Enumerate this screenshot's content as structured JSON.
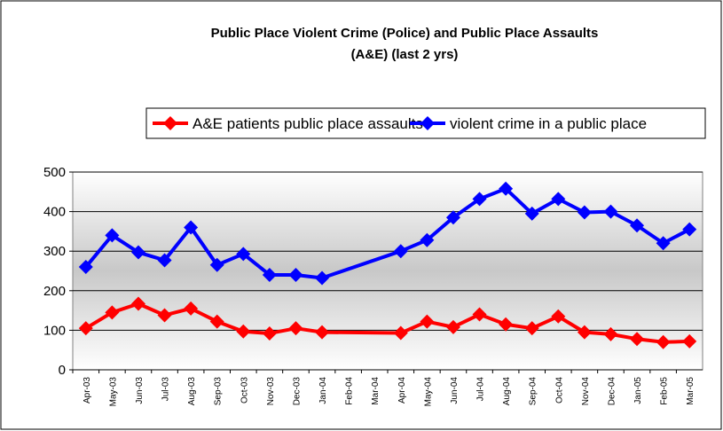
{
  "chart_data": {
    "type": "line",
    "title": [
      "Public Place Violent Crime (Police) and Public Place Assaults",
      "(A&E) (last 2 yrs)"
    ],
    "categories": [
      "Apr-03",
      "May-03",
      "Jun-03",
      "Jul-03",
      "Aug-03",
      "Sep-03",
      "Oct-03",
      "Nov-03",
      "Dec-03",
      "Jan-04",
      "Feb-04",
      "Mar-04",
      "Apr-04",
      "May-04",
      "Jun-04",
      "Jul-04",
      "Aug-04",
      "Sep-04",
      "Oct-04",
      "Nov-04",
      "Dec-04",
      "Jan-05",
      "Feb-05",
      "Mar-05"
    ],
    "series": [
      {
        "name": "A&E patients public place assaults",
        "color": "#ff0000",
        "values": [
          105,
          145,
          167,
          138,
          155,
          122,
          97,
          92,
          105,
          95,
          null,
          null,
          93,
          122,
          108,
          140,
          115,
          105,
          135,
          95,
          90,
          78,
          70,
          72
        ]
      },
      {
        "name": "violent crime in a public place",
        "color": "#0000ff",
        "values": [
          260,
          340,
          297,
          277,
          360,
          265,
          293,
          240,
          240,
          232,
          null,
          null,
          300,
          328,
          385,
          432,
          458,
          395,
          432,
          398,
          400,
          365,
          320,
          355
        ]
      }
    ],
    "ylim": [
      0,
      500
    ],
    "yticks": [
      0,
      100,
      200,
      300,
      400,
      500
    ],
    "grid": true,
    "legend": "top",
    "span_gaps": true
  }
}
